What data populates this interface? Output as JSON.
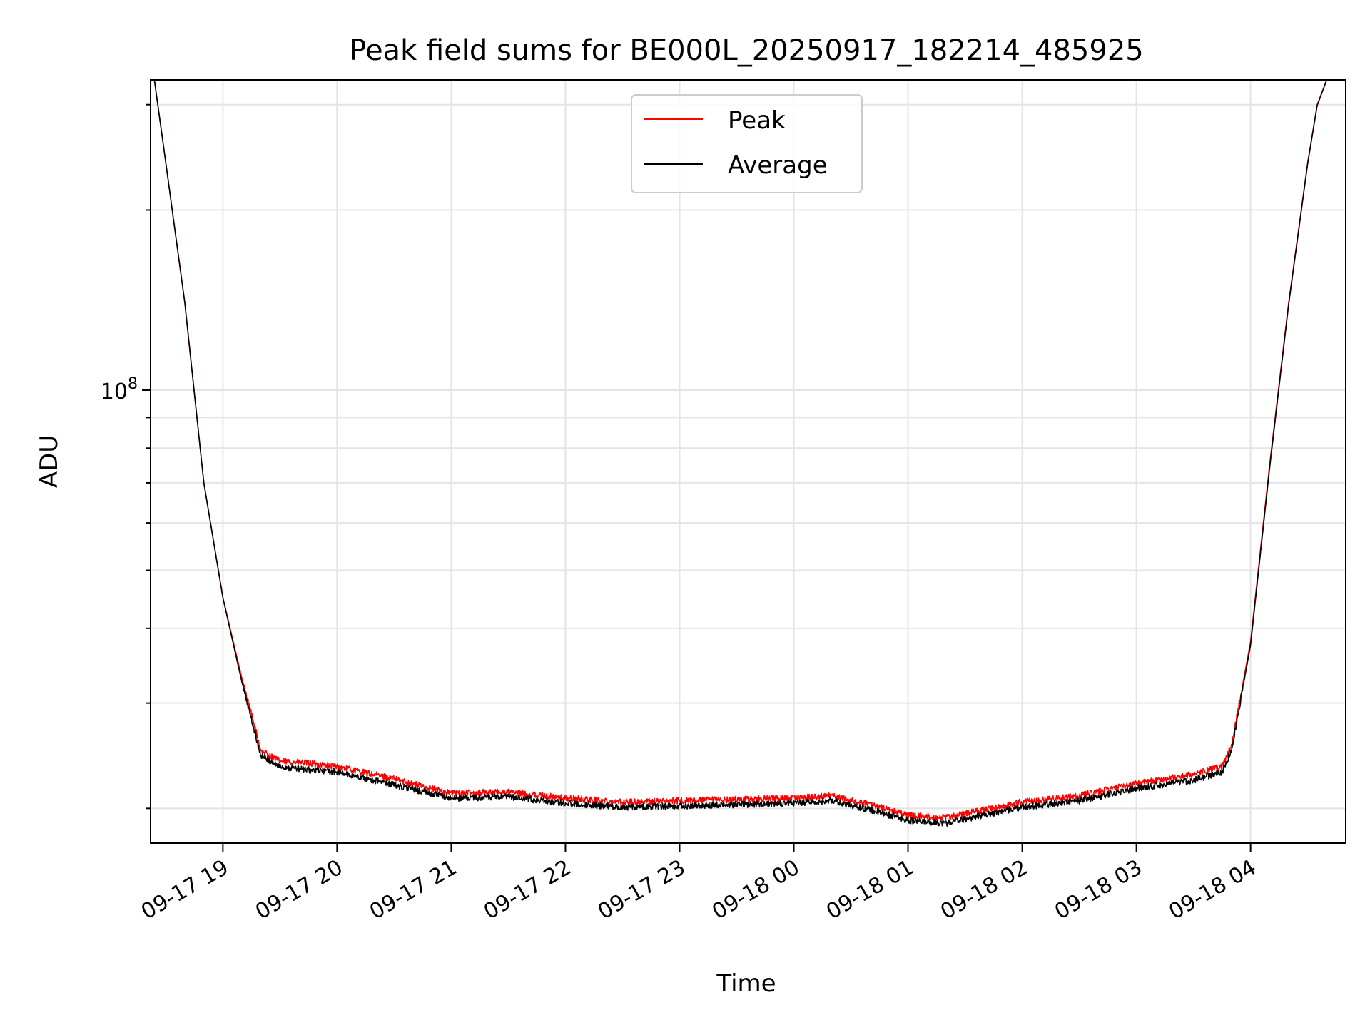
{
  "chart_data": {
    "type": "line",
    "title": "Peak field sums for BE000L_20250917_182214_485925",
    "xlabel": "Time",
    "ylabel": "ADU",
    "y_scale": "log",
    "y_tick_label": "10^8",
    "ylim": [
      17500000,
      330000000
    ],
    "xlim": [
      "2025-09-17 18:22",
      "2025-09-18 04:50"
    ],
    "x_ticks": [
      "09-17 19",
      "09-17 20",
      "09-17 21",
      "09-17 22",
      "09-17 23",
      "09-18 00",
      "09-18 01",
      "09-18 02",
      "09-18 03",
      "09-18 04"
    ],
    "grid": true,
    "legend_position": "top-center",
    "series": [
      {
        "name": "Peak",
        "color": "#ff0000",
        "points": [
          [
            "09-17 18:24",
            330000000
          ],
          [
            "09-17 18:30",
            240000000
          ],
          [
            "09-17 18:40",
            140000000
          ],
          [
            "09-17 18:50",
            70000000
          ],
          [
            "09-17 19:00",
            45000000
          ],
          [
            "09-17 19:10",
            33000000
          ],
          [
            "09-17 19:20",
            25000000
          ],
          [
            "09-17 19:30",
            24000000
          ],
          [
            "09-17 19:45",
            23800000
          ],
          [
            "09-17 20:00",
            23500000
          ],
          [
            "09-17 20:30",
            22400000
          ],
          [
            "09-17 21:00",
            21200000
          ],
          [
            "09-17 21:30",
            21300000
          ],
          [
            "09-17 22:00",
            20800000
          ],
          [
            "09-17 22:30",
            20500000
          ],
          [
            "09-17 23:00",
            20600000
          ],
          [
            "09-17 23:30",
            20700000
          ],
          [
            "09-18 00:00",
            20800000
          ],
          [
            "09-18 00:20",
            21000000
          ],
          [
            "09-18 00:40",
            20300000
          ],
          [
            "09-18 01:00",
            19500000
          ],
          [
            "09-18 01:20",
            19300000
          ],
          [
            "09-18 01:40",
            19900000
          ],
          [
            "09-18 02:00",
            20500000
          ],
          [
            "09-18 02:30",
            21000000
          ],
          [
            "09-18 03:00",
            22000000
          ],
          [
            "09-18 03:30",
            22800000
          ],
          [
            "09-18 03:45",
            23500000
          ],
          [
            "09-18 03:50",
            25500000
          ],
          [
            "09-18 04:00",
            38000000
          ],
          [
            "09-18 04:10",
            75000000
          ],
          [
            "09-18 04:20",
            140000000
          ],
          [
            "09-18 04:30",
            240000000
          ],
          [
            "09-18 04:35",
            300000000
          ],
          [
            "09-18 04:40",
            330000000
          ],
          [
            "09-18 04:50",
            330000000
          ]
        ]
      },
      {
        "name": "Average",
        "color": "#000000",
        "points": [
          [
            "09-17 18:24",
            330000000
          ],
          [
            "09-17 18:30",
            240000000
          ],
          [
            "09-17 18:40",
            140000000
          ],
          [
            "09-17 18:50",
            70000000
          ],
          [
            "09-17 19:00",
            45000000
          ],
          [
            "09-17 19:10",
            32500000
          ],
          [
            "09-17 19:20",
            24500000
          ],
          [
            "09-17 19:30",
            23500000
          ],
          [
            "09-17 19:45",
            23200000
          ],
          [
            "09-17 20:00",
            23000000
          ],
          [
            "09-17 20:30",
            21900000
          ],
          [
            "09-17 21:00",
            20800000
          ],
          [
            "09-17 21:30",
            20900000
          ],
          [
            "09-17 22:00",
            20400000
          ],
          [
            "09-17 22:30",
            20100000
          ],
          [
            "09-17 23:00",
            20200000
          ],
          [
            "09-17 23:30",
            20300000
          ],
          [
            "09-18 00:00",
            20400000
          ],
          [
            "09-18 00:20",
            20600000
          ],
          [
            "09-18 00:40",
            19900000
          ],
          [
            "09-18 01:00",
            19100000
          ],
          [
            "09-18 01:20",
            18900000
          ],
          [
            "09-18 01:40",
            19500000
          ],
          [
            "09-18 02:00",
            20100000
          ],
          [
            "09-18 02:30",
            20600000
          ],
          [
            "09-18 03:00",
            21600000
          ],
          [
            "09-18 03:30",
            22300000
          ],
          [
            "09-18 03:45",
            23000000
          ],
          [
            "09-18 03:50",
            25000000
          ],
          [
            "09-18 04:00",
            37500000
          ],
          [
            "09-18 04:10",
            74000000
          ],
          [
            "09-18 04:20",
            139000000
          ],
          [
            "09-18 04:30",
            239000000
          ],
          [
            "09-18 04:35",
            299000000
          ],
          [
            "09-18 04:40",
            330000000
          ],
          [
            "09-18 04:50",
            330000000
          ]
        ]
      }
    ]
  }
}
